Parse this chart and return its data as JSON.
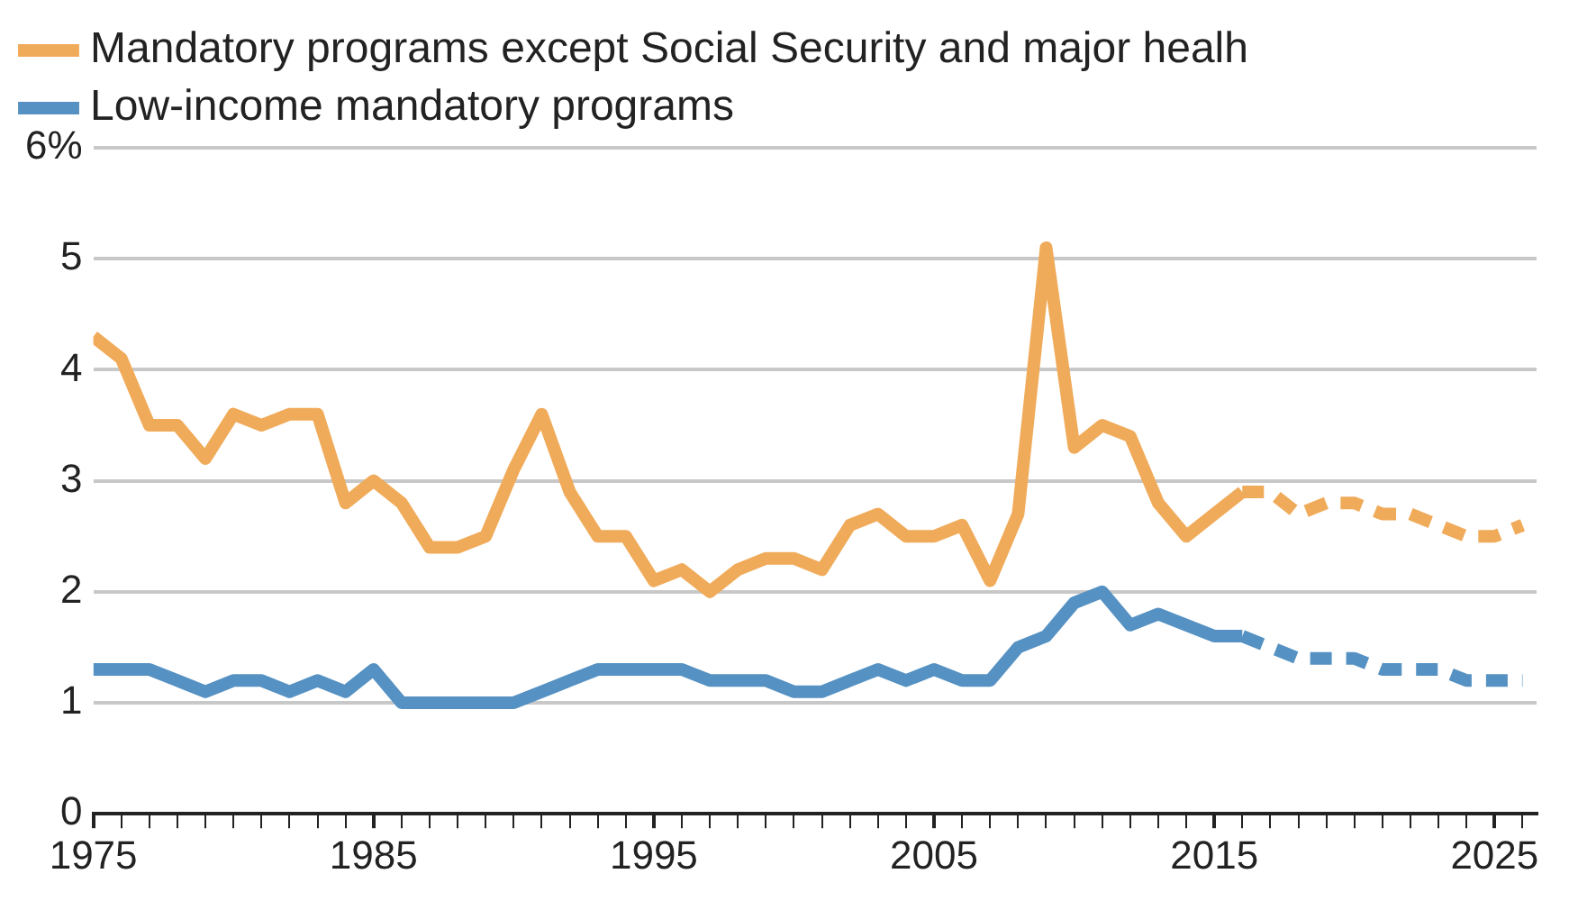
{
  "chart_data": {
    "type": "line",
    "series": [
      {
        "name": "Mandatory programs except Social Security and major healh",
        "color": "#f0ab5a",
        "x": [
          1975,
          1976,
          1977,
          1978,
          1979,
          1980,
          1981,
          1982,
          1983,
          1984,
          1985,
          1986,
          1987,
          1988,
          1989,
          1990,
          1991,
          1992,
          1993,
          1994,
          1995,
          1996,
          1997,
          1998,
          1999,
          2000,
          2001,
          2002,
          2003,
          2004,
          2005,
          2006,
          2007,
          2008,
          2009,
          2010,
          2011,
          2012,
          2013,
          2014,
          2015,
          2016
        ],
        "values": [
          4.3,
          4.1,
          3.5,
          3.5,
          3.2,
          3.6,
          3.5,
          3.6,
          3.6,
          2.8,
          3.0,
          2.8,
          2.4,
          2.4,
          2.5,
          3.1,
          3.6,
          2.9,
          2.5,
          2.5,
          2.1,
          2.2,
          2.0,
          2.2,
          2.3,
          2.3,
          2.2,
          2.6,
          2.7,
          2.5,
          2.5,
          2.6,
          2.1,
          2.7,
          5.1,
          3.3,
          3.5,
          3.4,
          2.8,
          2.5,
          2.7,
          2.9
        ]
      },
      {
        "name": "Low-income mandatory programs",
        "color": "#5591c2",
        "x": [
          1975,
          1976,
          1977,
          1978,
          1979,
          1980,
          1981,
          1982,
          1983,
          1984,
          1985,
          1986,
          1987,
          1988,
          1989,
          1990,
          1991,
          1992,
          1993,
          1994,
          1995,
          1996,
          1997,
          1998,
          1999,
          2000,
          2001,
          2002,
          2003,
          2004,
          2005,
          2006,
          2007,
          2008,
          2009,
          2010,
          2011,
          2012,
          2013,
          2014,
          2015,
          2016
        ],
        "values": [
          1.3,
          1.3,
          1.3,
          1.2,
          1.1,
          1.2,
          1.2,
          1.1,
          1.2,
          1.1,
          1.3,
          1.0,
          1.0,
          1.0,
          1.0,
          1.0,
          1.1,
          1.2,
          1.3,
          1.3,
          1.3,
          1.3,
          1.2,
          1.2,
          1.2,
          1.1,
          1.1,
          1.2,
          1.3,
          1.2,
          1.3,
          1.2,
          1.2,
          1.5,
          1.6,
          1.9,
          2.0,
          1.7,
          1.8,
          1.7,
          1.6,
          1.6
        ]
      },
      {
        "color": "#f0ab5a",
        "line_style": "dashed",
        "x": [
          2016,
          2017,
          2018,
          2019,
          2020,
          2021,
          2022,
          2023,
          2024,
          2025,
          2026
        ],
        "values": [
          2.9,
          2.9,
          2.7,
          2.8,
          2.8,
          2.7,
          2.7,
          2.6,
          2.5,
          2.5,
          2.6
        ]
      },
      {
        "color": "#5591c2",
        "line_style": "dashed",
        "x": [
          2016,
          2017,
          2018,
          2019,
          2020,
          2021,
          2022,
          2023,
          2024,
          2025,
          2026
        ],
        "values": [
          1.6,
          1.5,
          1.4,
          1.4,
          1.4,
          1.3,
          1.3,
          1.3,
          1.2,
          1.2,
          1.2
        ]
      }
    ],
    "xlim": [
      1975,
      2026.5
    ],
    "xticks": [
      1975,
      {
        "value": 1976,
        "label": null
      },
      {
        "value": 1977,
        "label": null
      },
      {
        "value": 1978,
        "label": null
      },
      {
        "value": 1979,
        "label": null
      },
      {
        "value": 1980,
        "label": null
      },
      {
        "value": 1981,
        "label": null
      },
      {
        "value": 1982,
        "label": null
      },
      {
        "value": 1983,
        "label": null
      },
      {
        "value": 1984,
        "label": null
      },
      1985,
      {
        "value": 1986,
        "label": null
      },
      {
        "value": 1987,
        "label": null
      },
      {
        "value": 1988,
        "label": null
      },
      {
        "value": 1989,
        "label": null
      },
      {
        "value": 1990,
        "label": null
      },
      {
        "value": 1991,
        "label": null
      },
      {
        "value": 1992,
        "label": null
      },
      {
        "value": 1993,
        "label": null
      },
      {
        "value": 1994,
        "label": null
      },
      1995,
      {
        "value": 1996,
        "label": null
      },
      {
        "value": 1997,
        "label": null
      },
      {
        "value": 1998,
        "label": null
      },
      {
        "value": 1999,
        "label": null
      },
      {
        "value": 2000,
        "label": null
      },
      {
        "value": 2001,
        "label": null
      },
      {
        "value": 2002,
        "label": null
      },
      {
        "value": 2003,
        "label": null
      },
      {
        "value": 2004,
        "label": null
      },
      2005,
      {
        "value": 2006,
        "label": null
      },
      {
        "value": 2007,
        "label": null
      },
      {
        "value": 2008,
        "label": null
      },
      {
        "value": 2009,
        "label": null
      },
      {
        "value": 2010,
        "label": null
      },
      {
        "value": 2011,
        "label": null
      },
      {
        "value": 2012,
        "label": null
      },
      {
        "value": 2013,
        "label": null
      },
      {
        "value": 2014,
        "label": null
      },
      2015,
      {
        "value": 2016,
        "label": null
      },
      {
        "value": 2017,
        "label": null
      },
      {
        "value": 2018,
        "label": null
      },
      {
        "value": 2019,
        "label": null
      },
      {
        "value": 2020,
        "label": null
      },
      {
        "value": 2021,
        "label": null
      },
      {
        "value": 2022,
        "label": null
      },
      {
        "value": 2023,
        "label": null
      },
      {
        "value": 2024,
        "label": null
      },
      2025,
      {
        "value": 2026,
        "label": null
      }
    ],
    "ylim": [
      0,
      6
    ],
    "yticks": [
      0,
      1,
      2,
      3,
      4,
      5,
      {
        "value": 6,
        "label": "6%"
      }
    ],
    "grid": "y",
    "legend": "top left",
    "marker": "none",
    "line_style": "solid"
  }
}
